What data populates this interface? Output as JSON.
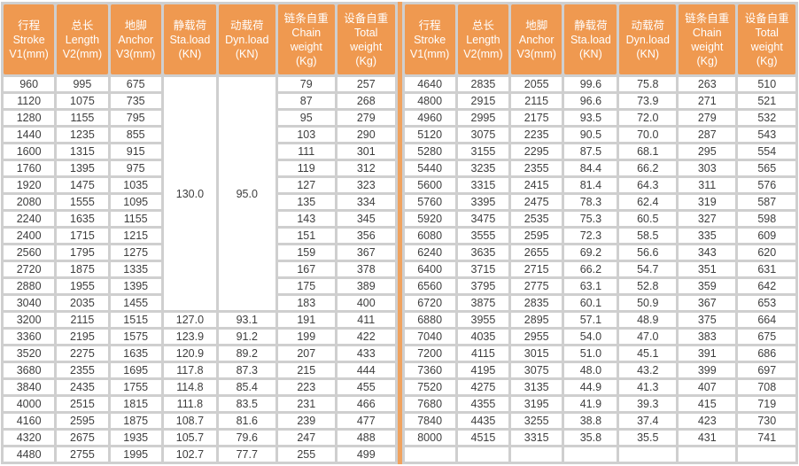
{
  "colors": {
    "header_bg": "#ef9950",
    "divider": "#f0a35f",
    "grid": "#cfcfcf",
    "cell_bg": "#ffffff",
    "header_text": "#ffffff",
    "cell_text": "#3e3e3e"
  },
  "columns": [
    {
      "id": "stroke",
      "lines": [
        "行程",
        "Stroke",
        "V1(mm)"
      ]
    },
    {
      "id": "length",
      "lines": [
        "总长",
        "Length",
        "V2(mm)"
      ]
    },
    {
      "id": "anchor",
      "lines": [
        "地脚",
        "Anchor",
        "V3(mm)"
      ]
    },
    {
      "id": "sta-load",
      "lines": [
        "静载荷",
        "Sta.load",
        "(KN)"
      ]
    },
    {
      "id": "dyn-load",
      "lines": [
        "动载荷",
        "Dyn.load",
        "(KN)"
      ]
    },
    {
      "id": "chain-weight",
      "lines": [
        "链条自重",
        "Chain",
        "weight",
        "(Kg)"
      ]
    },
    {
      "id": "total-weight",
      "lines": [
        "设备自重",
        "Total",
        "weight",
        "(Kg)"
      ]
    }
  ],
  "tables": [
    {
      "name": "left",
      "rows": [
        [
          "960",
          "995",
          "675",
          {
            "v": "130.0",
            "rs": 14
          },
          {
            "v": "95.0",
            "rs": 14
          },
          "79",
          "257"
        ],
        [
          "1120",
          "1075",
          "735",
          null,
          null,
          "87",
          "268"
        ],
        [
          "1280",
          "1155",
          "795",
          null,
          null,
          "95",
          "279"
        ],
        [
          "1440",
          "1235",
          "855",
          null,
          null,
          "103",
          "290"
        ],
        [
          "1600",
          "1315",
          "915",
          null,
          null,
          "111",
          "301"
        ],
        [
          "1760",
          "1395",
          "975",
          null,
          null,
          "119",
          "312"
        ],
        [
          "1920",
          "1475",
          "1035",
          null,
          null,
          "127",
          "323"
        ],
        [
          "2080",
          "1555",
          "1095",
          null,
          null,
          "135",
          "334"
        ],
        [
          "2240",
          "1635",
          "1155",
          null,
          null,
          "143",
          "345"
        ],
        [
          "2400",
          "1715",
          "1215",
          null,
          null,
          "151",
          "356"
        ],
        [
          "2560",
          "1795",
          "1275",
          null,
          null,
          "159",
          "367"
        ],
        [
          "2720",
          "1875",
          "1335",
          null,
          null,
          "167",
          "378"
        ],
        [
          "2880",
          "1955",
          "1395",
          null,
          null,
          "175",
          "389"
        ],
        [
          "3040",
          "2035",
          "1455",
          null,
          null,
          "183",
          "400"
        ],
        [
          "3200",
          "2115",
          "1515",
          "127.0",
          "93.1",
          "191",
          "411"
        ],
        [
          "3360",
          "2195",
          "1575",
          "123.9",
          "91.2",
          "199",
          "422"
        ],
        [
          "3520",
          "2275",
          "1635",
          "120.9",
          "89.2",
          "207",
          "433"
        ],
        [
          "3680",
          "2355",
          "1695",
          "117.8",
          "87.3",
          "215",
          "444"
        ],
        [
          "3840",
          "2435",
          "1755",
          "114.8",
          "85.4",
          "223",
          "455"
        ],
        [
          "4000",
          "2515",
          "1815",
          "111.8",
          "83.5",
          "231",
          "466"
        ],
        [
          "4160",
          "2595",
          "1875",
          "108.7",
          "81.6",
          "239",
          "477"
        ],
        [
          "4320",
          "2675",
          "1935",
          "105.7",
          "79.6",
          "247",
          "488"
        ],
        [
          "4480",
          "2755",
          "1995",
          "102.7",
          "77.7",
          "255",
          "499"
        ]
      ]
    },
    {
      "name": "right",
      "rows": [
        [
          "4640",
          "2835",
          "2055",
          "99.6",
          "75.8",
          "263",
          "510"
        ],
        [
          "4800",
          "2915",
          "2115",
          "96.6",
          "73.9",
          "271",
          "521"
        ],
        [
          "4960",
          "2995",
          "2175",
          "93.5",
          "72.0",
          "279",
          "532"
        ],
        [
          "5120",
          "3075",
          "2235",
          "90.5",
          "70.0",
          "287",
          "543"
        ],
        [
          "5280",
          "3155",
          "2295",
          "87.5",
          "68.1",
          "295",
          "554"
        ],
        [
          "5440",
          "3235",
          "2355",
          "84.4",
          "66.2",
          "303",
          "565"
        ],
        [
          "5600",
          "3315",
          "2415",
          "81.4",
          "64.3",
          "311",
          "576"
        ],
        [
          "5760",
          "3395",
          "2475",
          "78.3",
          "62.4",
          "319",
          "587"
        ],
        [
          "5920",
          "3475",
          "2535",
          "75.3",
          "60.5",
          "327",
          "598"
        ],
        [
          "6080",
          "3555",
          "2595",
          "72.3",
          "58.5",
          "335",
          "609"
        ],
        [
          "6240",
          "3635",
          "2655",
          "69.2",
          "56.6",
          "343",
          "620"
        ],
        [
          "6400",
          "3715",
          "2715",
          "66.2",
          "54.7",
          "351",
          "631"
        ],
        [
          "6560",
          "3795",
          "2775",
          "63.1",
          "52.8",
          "359",
          "642"
        ],
        [
          "6720",
          "3875",
          "2835",
          "60.1",
          "50.9",
          "367",
          "653"
        ],
        [
          "6880",
          "3955",
          "2895",
          "57.1",
          "48.9",
          "375",
          "664"
        ],
        [
          "7040",
          "4035",
          "2955",
          "54.0",
          "47.0",
          "383",
          "675"
        ],
        [
          "7200",
          "4115",
          "3015",
          "51.0",
          "45.1",
          "391",
          "686"
        ],
        [
          "7360",
          "4195",
          "3075",
          "48.0",
          "43.2",
          "399",
          "697"
        ],
        [
          "7520",
          "4275",
          "3135",
          "44.9",
          "41.3",
          "407",
          "708"
        ],
        [
          "7680",
          "4355",
          "3195",
          "41.9",
          "39.3",
          "415",
          "719"
        ],
        [
          "7840",
          "4435",
          "3255",
          "38.8",
          "37.4",
          "423",
          "730"
        ],
        [
          "8000",
          "4515",
          "3315",
          "35.8",
          "35.5",
          "431",
          "741"
        ],
        [
          "",
          "",
          "",
          "",
          "",
          "",
          ""
        ]
      ]
    }
  ]
}
